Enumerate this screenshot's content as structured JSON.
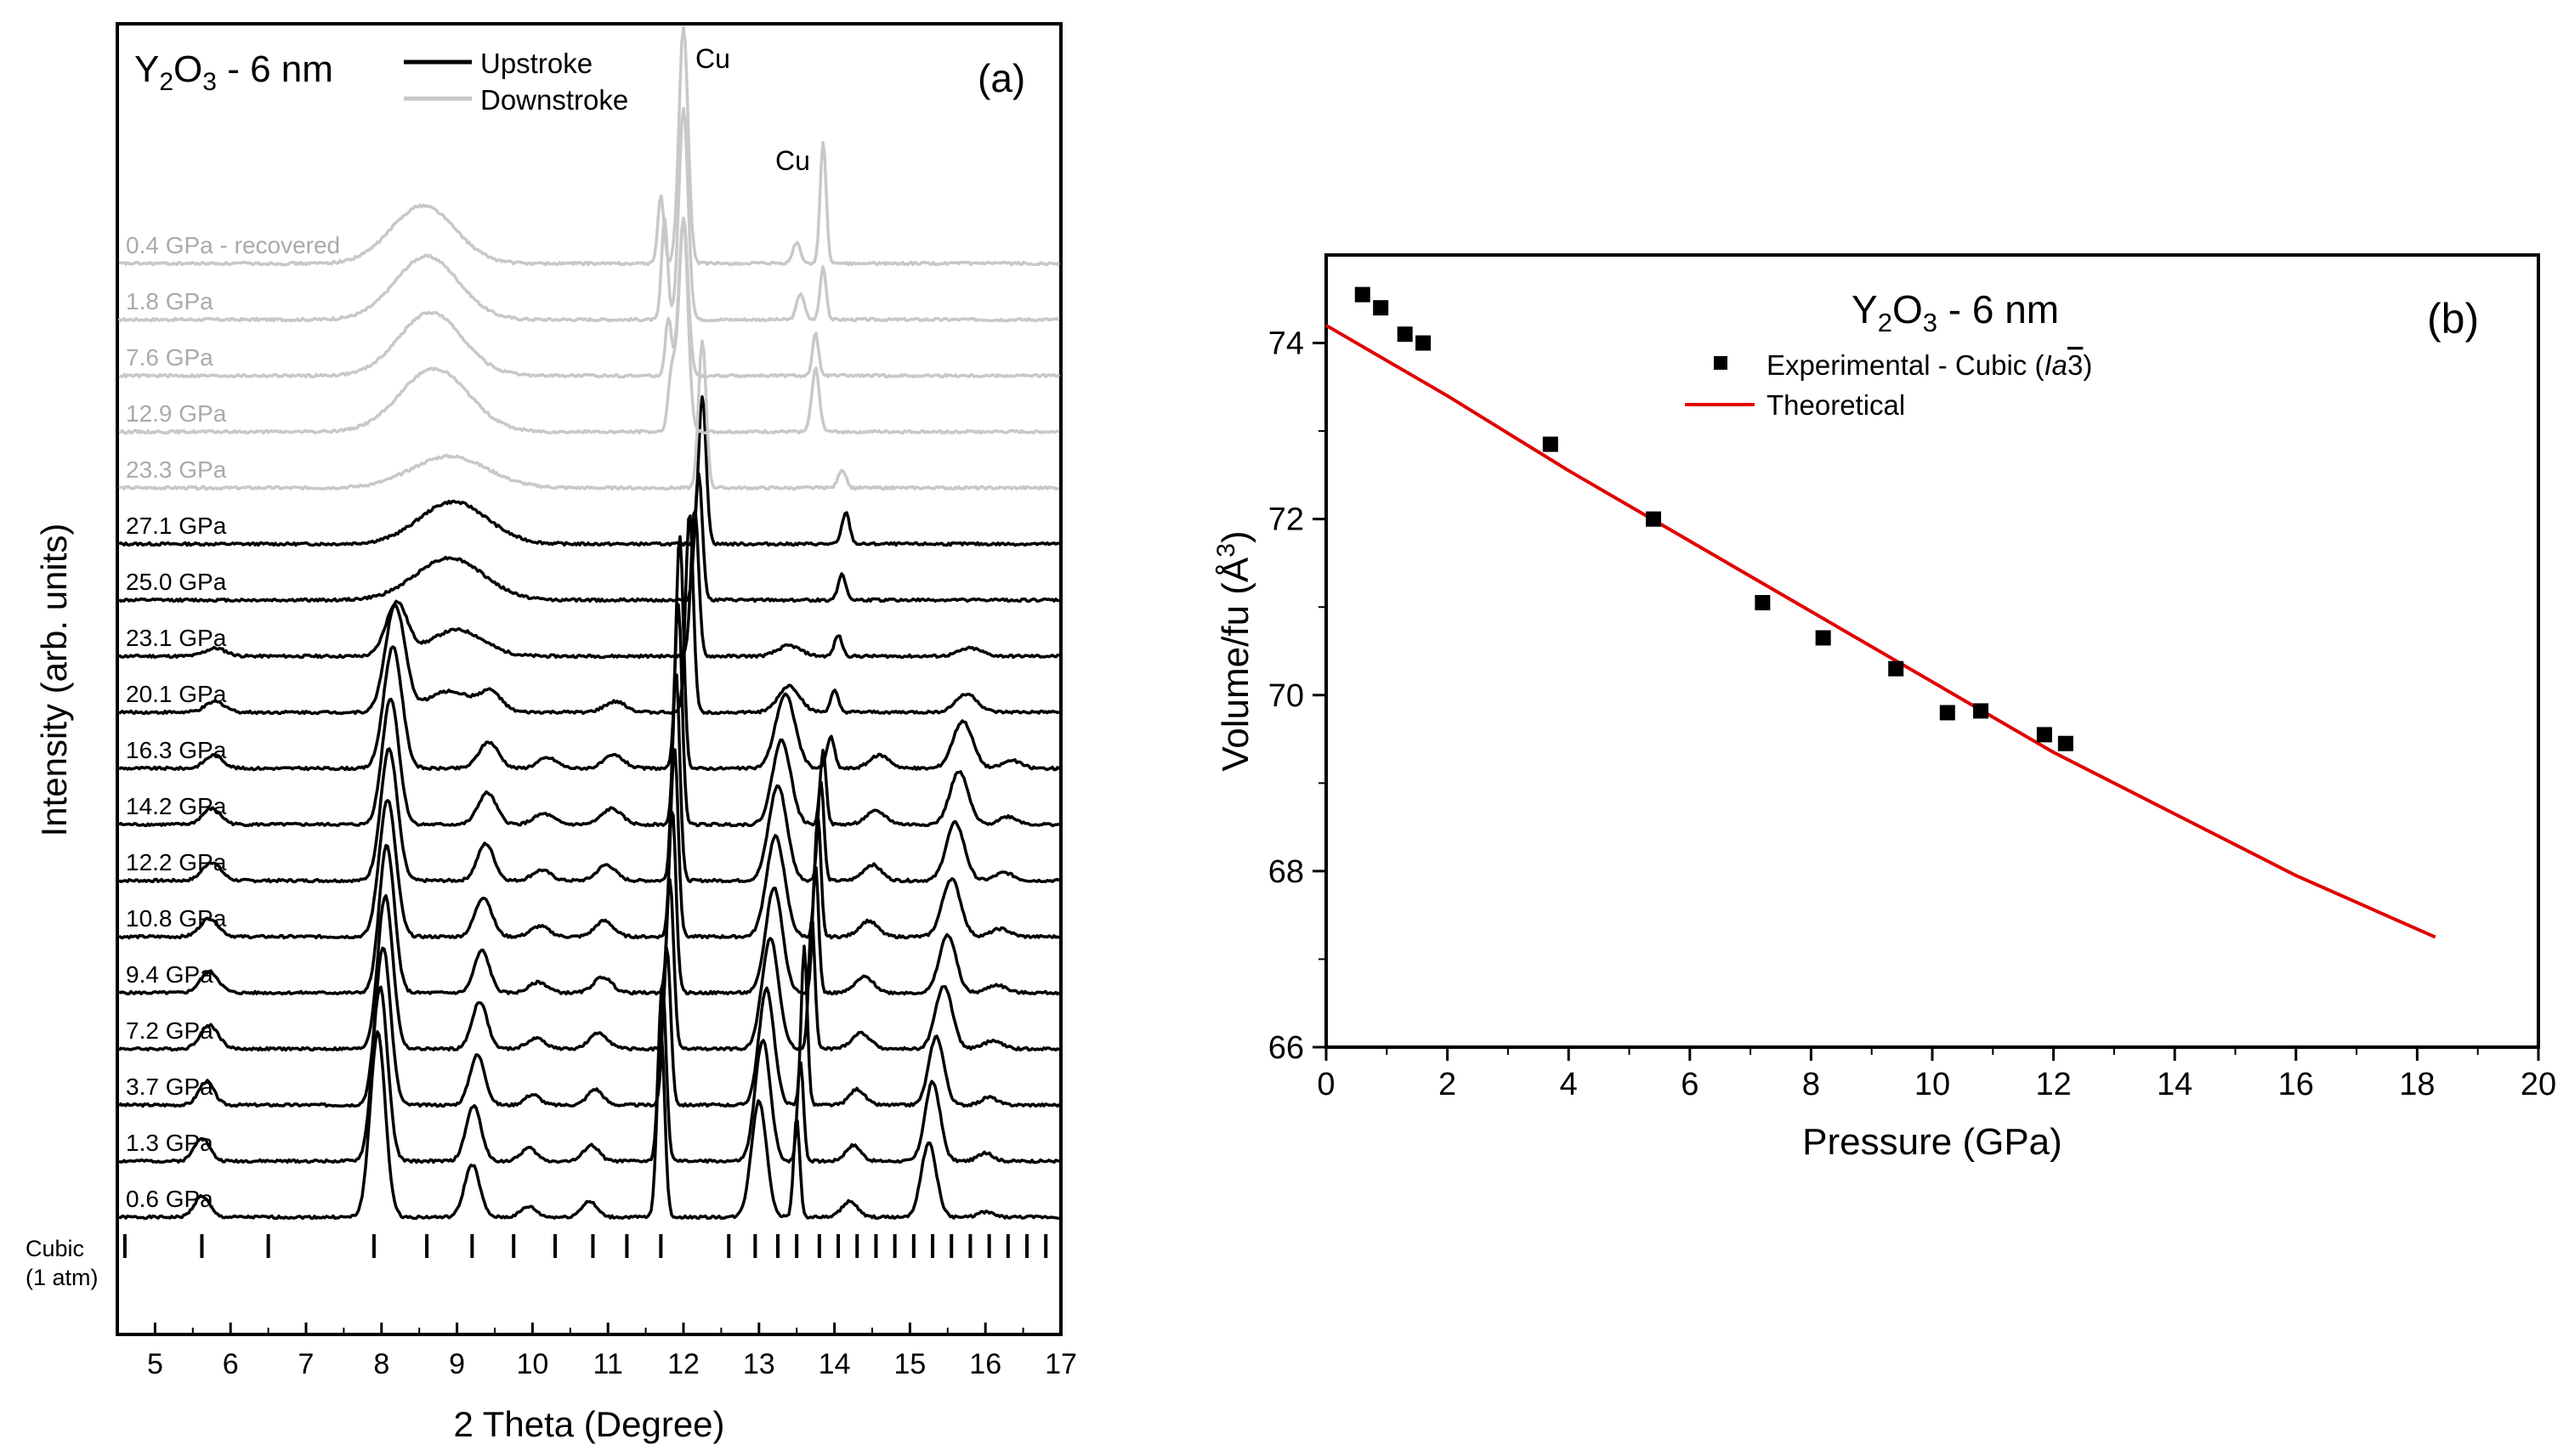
{
  "chart_data": [
    {
      "id": "panel-a",
      "type": "line",
      "panel_label": "(a)",
      "title": "Y2O3 - 6 nm",
      "xlabel": "2 Theta (Degree)",
      "ylabel": "Intensity (arb. units)",
      "xlim": [
        4.5,
        17
      ],
      "x_ticks": [
        5,
        6,
        7,
        8,
        9,
        10,
        11,
        12,
        13,
        14,
        15,
        16,
        17
      ],
      "legend": [
        {
          "name": "Upstroke",
          "color": "#000000"
        },
        {
          "name": "Downstroke",
          "color": "#c8c8c8"
        }
      ],
      "legend_position": "top-left",
      "annotations": [
        "Cu",
        "Cu"
      ],
      "reference_label": [
        "Cubic",
        "(1 atm)"
      ],
      "reference_ticks": [
        4.6,
        5.62,
        6.5,
        7.9,
        8.6,
        9.2,
        9.75,
        10.3,
        10.8,
        11.25,
        11.7,
        12.6,
        12.95,
        13.25,
        13.5,
        13.8,
        14.05,
        14.3,
        14.55,
        14.8,
        15.05,
        15.3,
        15.55,
        15.8,
        16.05,
        16.3,
        16.55,
        16.8,
        17.0
      ],
      "series": [
        {
          "name": "0.6 GPa",
          "stroke": "up",
          "peaks": [
            [
              5.62,
              0.4,
              0.1
            ],
            [
              7.95,
              3.5,
              0.1
            ],
            [
              9.2,
              1.0,
              0.1
            ],
            [
              9.95,
              0.2,
              0.1
            ],
            [
              10.75,
              0.3,
              0.1
            ],
            [
              11.7,
              3.6,
              0.05
            ],
            [
              13.0,
              2.2,
              0.1
            ],
            [
              13.5,
              1.9,
              0.04
            ],
            [
              14.2,
              0.3,
              0.1
            ],
            [
              15.25,
              1.4,
              0.1
            ],
            [
              16.0,
              0.1,
              0.1
            ]
          ]
        },
        {
          "name": "1.3 GPa",
          "stroke": "up",
          "peaks": [
            [
              5.62,
              0.45,
              0.1
            ],
            [
              7.98,
              3.3,
              0.1
            ],
            [
              9.22,
              1.05,
              0.1
            ],
            [
              9.95,
              0.25,
              0.1
            ],
            [
              10.78,
              0.3,
              0.1
            ],
            [
              11.72,
              3.4,
              0.05
            ],
            [
              13.05,
              2.3,
              0.1
            ],
            [
              13.55,
              1.9,
              0.04
            ],
            [
              14.25,
              0.3,
              0.1
            ],
            [
              15.3,
              1.5,
              0.1
            ],
            [
              16.0,
              0.15,
              0.1
            ]
          ]
        },
        {
          "name": "3.7 GPa",
          "stroke": "up",
          "peaks": [
            [
              5.68,
              0.45,
              0.1
            ],
            [
              8.02,
              3.0,
              0.1
            ],
            [
              9.27,
              0.95,
              0.1
            ],
            [
              10.0,
              0.2,
              0.1
            ],
            [
              10.83,
              0.3,
              0.1
            ],
            [
              11.78,
              3.0,
              0.05
            ],
            [
              13.1,
              2.2,
              0.1
            ],
            [
              13.6,
              3.0,
              0.04
            ],
            [
              14.3,
              0.3,
              0.1
            ],
            [
              15.35,
              1.3,
              0.1
            ],
            [
              16.05,
              0.15,
              0.1
            ]
          ]
        },
        {
          "name": "7.2 GPa",
          "stroke": "up",
          "peaks": [
            [
              5.72,
              0.45,
              0.12
            ],
            [
              8.05,
              2.9,
              0.1
            ],
            [
              9.3,
              0.9,
              0.1
            ],
            [
              10.05,
              0.2,
              0.12
            ],
            [
              10.88,
              0.3,
              0.12
            ],
            [
              11.82,
              3.2,
              0.05
            ],
            [
              13.15,
              2.1,
              0.11
            ],
            [
              13.7,
              2.5,
              0.04
            ],
            [
              14.35,
              0.3,
              0.12
            ],
            [
              15.45,
              1.2,
              0.11
            ],
            [
              16.1,
              0.15,
              0.12
            ]
          ]
        },
        {
          "name": "9.4 GPa",
          "stroke": "up",
          "peaks": [
            [
              5.72,
              0.4,
              0.12
            ],
            [
              8.07,
              2.8,
              0.1
            ],
            [
              9.33,
              0.8,
              0.1
            ],
            [
              10.08,
              0.2,
              0.12
            ],
            [
              10.93,
              0.3,
              0.12
            ],
            [
              11.85,
              3.5,
              0.05
            ],
            [
              13.2,
              2.0,
              0.11
            ],
            [
              13.75,
              2.4,
              0.04
            ],
            [
              14.4,
              0.3,
              0.12
            ],
            [
              15.5,
              1.1,
              0.11
            ],
            [
              16.15,
              0.15,
              0.12
            ]
          ]
        },
        {
          "name": "10.8 GPa",
          "stroke": "up",
          "peaks": [
            [
              5.72,
              0.35,
              0.12
            ],
            [
              8.08,
              2.6,
              0.11
            ],
            [
              9.35,
              0.75,
              0.11
            ],
            [
              10.1,
              0.2,
              0.12
            ],
            [
              10.95,
              0.3,
              0.12
            ],
            [
              11.88,
              3.6,
              0.05
            ],
            [
              13.22,
              1.9,
              0.12
            ],
            [
              13.78,
              2.3,
              0.04
            ],
            [
              14.45,
              0.3,
              0.12
            ],
            [
              15.55,
              1.1,
              0.12
            ],
            [
              16.2,
              0.15,
              0.12
            ]
          ]
        },
        {
          "name": "12.2 GPa",
          "stroke": "up",
          "peaks": [
            [
              5.75,
              0.35,
              0.12
            ],
            [
              8.1,
              2.5,
              0.11
            ],
            [
              9.38,
              0.7,
              0.11
            ],
            [
              10.12,
              0.2,
              0.12
            ],
            [
              10.98,
              0.3,
              0.12
            ],
            [
              11.9,
              4.0,
              0.05
            ],
            [
              13.25,
              1.8,
              0.12
            ],
            [
              13.82,
              1.9,
              0.04
            ],
            [
              14.5,
              0.3,
              0.12
            ],
            [
              15.6,
              1.1,
              0.12
            ],
            [
              16.25,
              0.15,
              0.12
            ]
          ]
        },
        {
          "name": "14.2 GPa",
          "stroke": "up",
          "peaks": [
            [
              5.75,
              0.3,
              0.12
            ],
            [
              8.12,
              2.4,
              0.11
            ],
            [
              9.4,
              0.6,
              0.12
            ],
            [
              10.15,
              0.2,
              0.13
            ],
            [
              11.05,
              0.3,
              0.13
            ],
            [
              11.93,
              4.2,
              0.05
            ],
            [
              13.3,
              1.6,
              0.12
            ],
            [
              13.85,
              1.4,
              0.04
            ],
            [
              14.55,
              0.25,
              0.13
            ],
            [
              15.65,
              1.0,
              0.12
            ],
            [
              16.3,
              0.15,
              0.12
            ]
          ]
        },
        {
          "name": "16.3 GPa",
          "stroke": "up",
          "peaks": [
            [
              5.78,
              0.25,
              0.12
            ],
            [
              8.15,
              2.3,
              0.12
            ],
            [
              9.42,
              0.5,
              0.13
            ],
            [
              10.2,
              0.2,
              0.13
            ],
            [
              11.08,
              0.25,
              0.13
            ],
            [
              11.95,
              4.4,
              0.05
            ],
            [
              13.35,
              1.4,
              0.13
            ],
            [
              13.95,
              0.6,
              0.05
            ],
            [
              14.6,
              0.25,
              0.13
            ],
            [
              15.7,
              0.9,
              0.13
            ],
            [
              16.35,
              0.15,
              0.12
            ]
          ]
        },
        {
          "name": "20.1 GPa",
          "stroke": "up",
          "peaks": [
            [
              5.8,
              0.2,
              0.13
            ],
            [
              8.18,
              2.0,
              0.13
            ],
            [
              9.45,
              0.35,
              0.14
            ],
            [
              11.1,
              0.2,
              0.14
            ],
            [
              12.08,
              3.8,
              0.05
            ],
            [
              13.4,
              0.5,
              0.14
            ],
            [
              14.0,
              0.4,
              0.05
            ],
            [
              15.75,
              0.35,
              0.14
            ],
            [
              8.9,
              0.4,
              0.3
            ]
          ]
        },
        {
          "name": "23.1 GPa",
          "stroke": "up",
          "peaks": [
            [
              5.8,
              0.15,
              0.14
            ],
            [
              8.2,
              1.0,
              0.14
            ],
            [
              9.0,
              0.5,
              0.35
            ],
            [
              12.15,
              2.8,
              0.05
            ],
            [
              13.4,
              0.2,
              0.15
            ],
            [
              14.05,
              0.4,
              0.05
            ],
            [
              15.8,
              0.15,
              0.15
            ]
          ]
        },
        {
          "name": "25.0 GPa",
          "stroke": "up",
          "peaks": [
            [
              8.9,
              0.8,
              0.45
            ],
            [
              12.2,
              2.4,
              0.05
            ],
            [
              14.1,
              0.5,
              0.05
            ]
          ]
        },
        {
          "name": "27.1 GPa",
          "stroke": "up",
          "peaks": [
            [
              8.95,
              0.8,
              0.45
            ],
            [
              12.25,
              2.8,
              0.05
            ],
            [
              14.15,
              0.6,
              0.05
            ]
          ]
        },
        {
          "name": "23.3 GPa",
          "stroke": "down",
          "peaks": [
            [
              8.9,
              0.6,
              0.5
            ],
            [
              12.25,
              2.8,
              0.05
            ],
            [
              14.1,
              0.35,
              0.05
            ]
          ]
        },
        {
          "name": "12.9 GPa",
          "stroke": "down",
          "peaks": [
            [
              8.7,
              1.2,
              0.45
            ],
            [
              11.85,
              1.2,
              0.05
            ],
            [
              12.0,
              4.0,
              0.06
            ],
            [
              13.75,
              1.2,
              0.05
            ]
          ]
        },
        {
          "name": "7.6 GPa",
          "stroke": "down",
          "peaks": [
            [
              8.65,
              1.2,
              0.42
            ],
            [
              11.8,
              1.1,
              0.04
            ],
            [
              12.0,
              3.0,
              0.06
            ],
            [
              13.75,
              0.8,
              0.04
            ]
          ]
        },
        {
          "name": "1.8 GPa",
          "stroke": "down",
          "peaks": [
            [
              8.6,
              1.2,
              0.42
            ],
            [
              11.75,
              1.9,
              0.04
            ],
            [
              12.0,
              4.0,
              0.06
            ],
            [
              13.55,
              0.5,
              0.05
            ],
            [
              13.85,
              1.0,
              0.04
            ]
          ]
        },
        {
          "name": "0.4 GPa - recovered",
          "stroke": "down",
          "peaks": [
            [
              8.55,
              1.1,
              0.42
            ],
            [
              11.7,
              1.3,
              0.04
            ],
            [
              12.0,
              4.5,
              0.06
            ],
            [
              13.5,
              0.4,
              0.05
            ],
            [
              13.85,
              2.3,
              0.04
            ]
          ]
        }
      ]
    },
    {
      "id": "panel-b",
      "type": "scatter",
      "panel_label": "(b)",
      "title": "Y2O3 - 6 nm",
      "xlabel": "Pressure (GPa)",
      "ylabel": "Volume/fu (Å3)",
      "xlim": [
        0,
        20
      ],
      "ylim": [
        66,
        75
      ],
      "x_ticks": [
        0,
        2,
        4,
        6,
        8,
        10,
        12,
        14,
        16,
        18,
        20
      ],
      "y_ticks": [
        66,
        68,
        70,
        72,
        74
      ],
      "legend_position": "top-center",
      "series": [
        {
          "name": "Experimental - Cubic (Ia3)",
          "marker": "square",
          "color": "#000000",
          "x": [
            0.6,
            0.9,
            1.3,
            1.6,
            3.7,
            5.4,
            7.2,
            8.2,
            9.4,
            10.25,
            10.8,
            11.85,
            12.2
          ],
          "y": [
            74.55,
            74.4,
            74.1,
            74.0,
            72.85,
            72.0,
            71.05,
            70.65,
            70.3,
            69.8,
            69.82,
            69.55,
            69.45
          ]
        },
        {
          "name": "Theoretical",
          "marker": "line",
          "color": "#e00000",
          "x": [
            0,
            2,
            4,
            6,
            8,
            10,
            12,
            14,
            16,
            18.3
          ],
          "y": [
            74.2,
            73.4,
            72.55,
            71.75,
            70.95,
            70.15,
            69.35,
            68.65,
            67.95,
            67.25
          ]
        }
      ]
    }
  ]
}
